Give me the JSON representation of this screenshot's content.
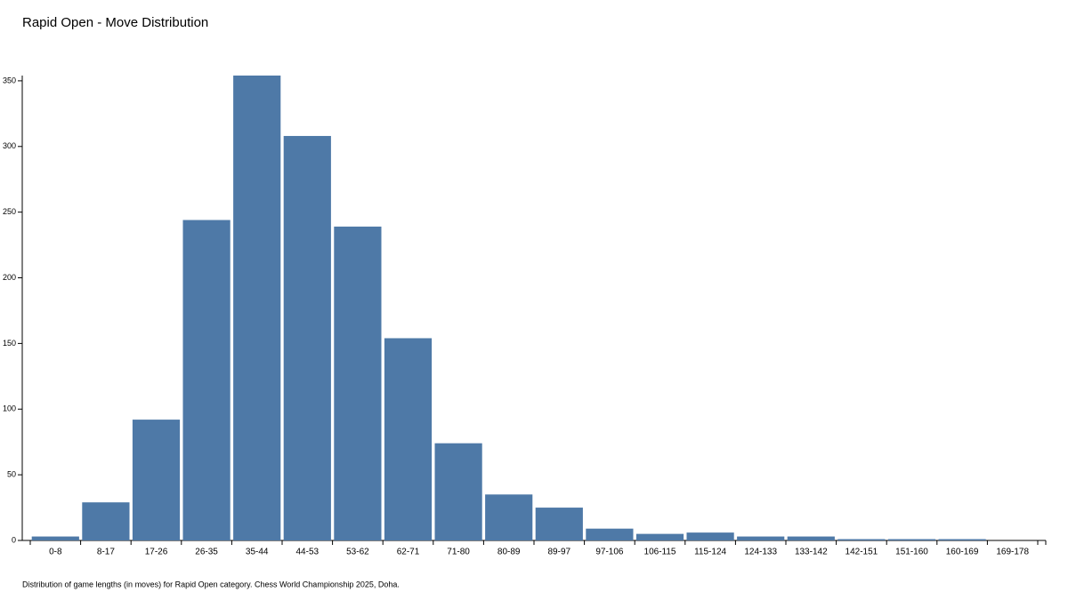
{
  "chart_data": {
    "type": "bar",
    "title": "Rapid Open - Move Distribution",
    "caption": "Distribution of game lengths (in moves) for Rapid Open category. Chess World Championship 2025, Doha.",
    "categories": [
      "0-8",
      "8-17",
      "17-26",
      "26-35",
      "35-44",
      "44-53",
      "53-62",
      "62-71",
      "71-80",
      "80-89",
      "89-97",
      "97-106",
      "106-115",
      "115-124",
      "124-133",
      "133-142",
      "142-151",
      "151-160",
      "160-169",
      "169-178"
    ],
    "values": [
      3,
      29,
      92,
      244,
      354,
      308,
      239,
      154,
      74,
      35,
      25,
      9,
      5,
      6,
      3,
      3,
      1,
      1,
      1,
      0
    ],
    "color": "#4e79a7",
    "ylim": [
      0,
      354
    ],
    "yticks": [
      0,
      50,
      100,
      150,
      200,
      250,
      300,
      350
    ],
    "grid": false
  }
}
